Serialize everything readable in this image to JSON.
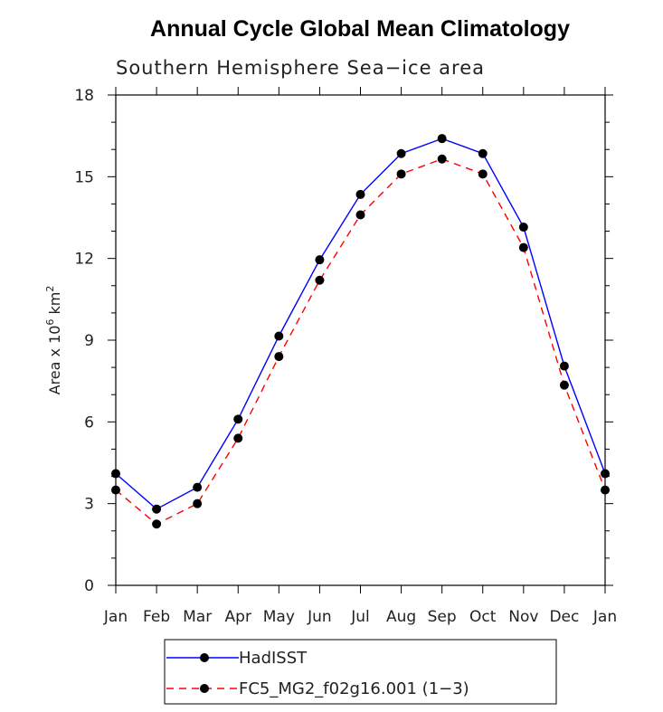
{
  "chart_data": {
    "type": "line",
    "title": "Annual Cycle Global Mean Climatology",
    "subtitle": "Southern Hemisphere Sea−ice area",
    "ylabel_text": "Area x 10",
    "ylabel_exp1": "6",
    "ylabel_unit": " km",
    "ylabel_exp2": "2",
    "categories": [
      "Jan",
      "Feb",
      "Mar",
      "Apr",
      "May",
      "Jun",
      "Jul",
      "Aug",
      "Sep",
      "Oct",
      "Nov",
      "Dec",
      "Jan"
    ],
    "yticks": [
      "0",
      "3",
      "6",
      "9",
      "12",
      "15",
      "18"
    ],
    "ylim": [
      0,
      18
    ],
    "grid": false,
    "legend_position": "bottom",
    "series": [
      {
        "name": "HadISST",
        "color": "#0000ff",
        "line_style": "solid",
        "values": [
          4.1,
          2.8,
          3.6,
          6.1,
          9.15,
          11.95,
          14.35,
          15.85,
          16.4,
          15.85,
          13.15,
          8.05,
          4.1
        ]
      },
      {
        "name": "FC5_MG2_f02g16.001 (1−3)",
        "color": "#ff0000",
        "line_style": "dashed",
        "values": [
          3.5,
          2.25,
          3.0,
          5.4,
          8.4,
          11.2,
          13.6,
          15.1,
          15.65,
          15.1,
          12.4,
          7.35,
          3.5
        ]
      }
    ]
  }
}
